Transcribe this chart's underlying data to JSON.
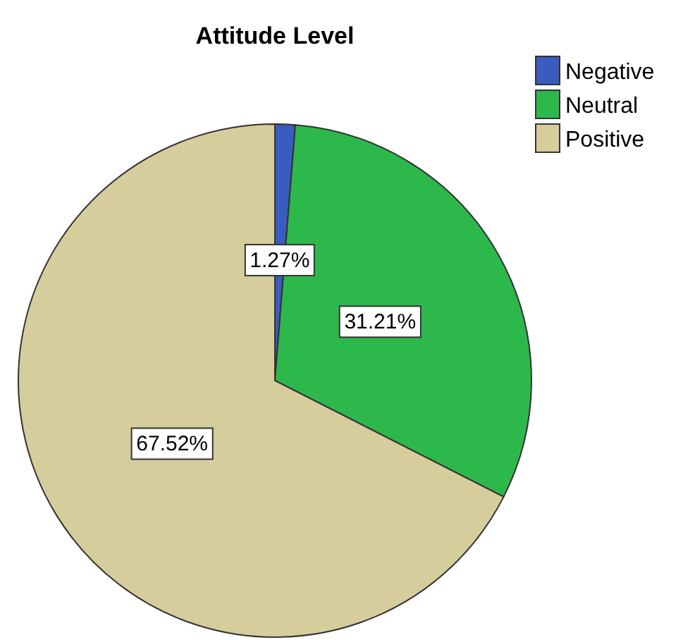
{
  "chart_data": {
    "type": "pie",
    "title": "Attitude Level",
    "categories": [
      "Negative",
      "Neutral",
      "Positive"
    ],
    "values": [
      1.27,
      31.21,
      67.52
    ],
    "colors": [
      "#3a5bbf",
      "#2db84c",
      "#d6cd9c"
    ],
    "value_labels": [
      "1.27%",
      "31.21%",
      "67.52%"
    ],
    "legend": "top right"
  }
}
